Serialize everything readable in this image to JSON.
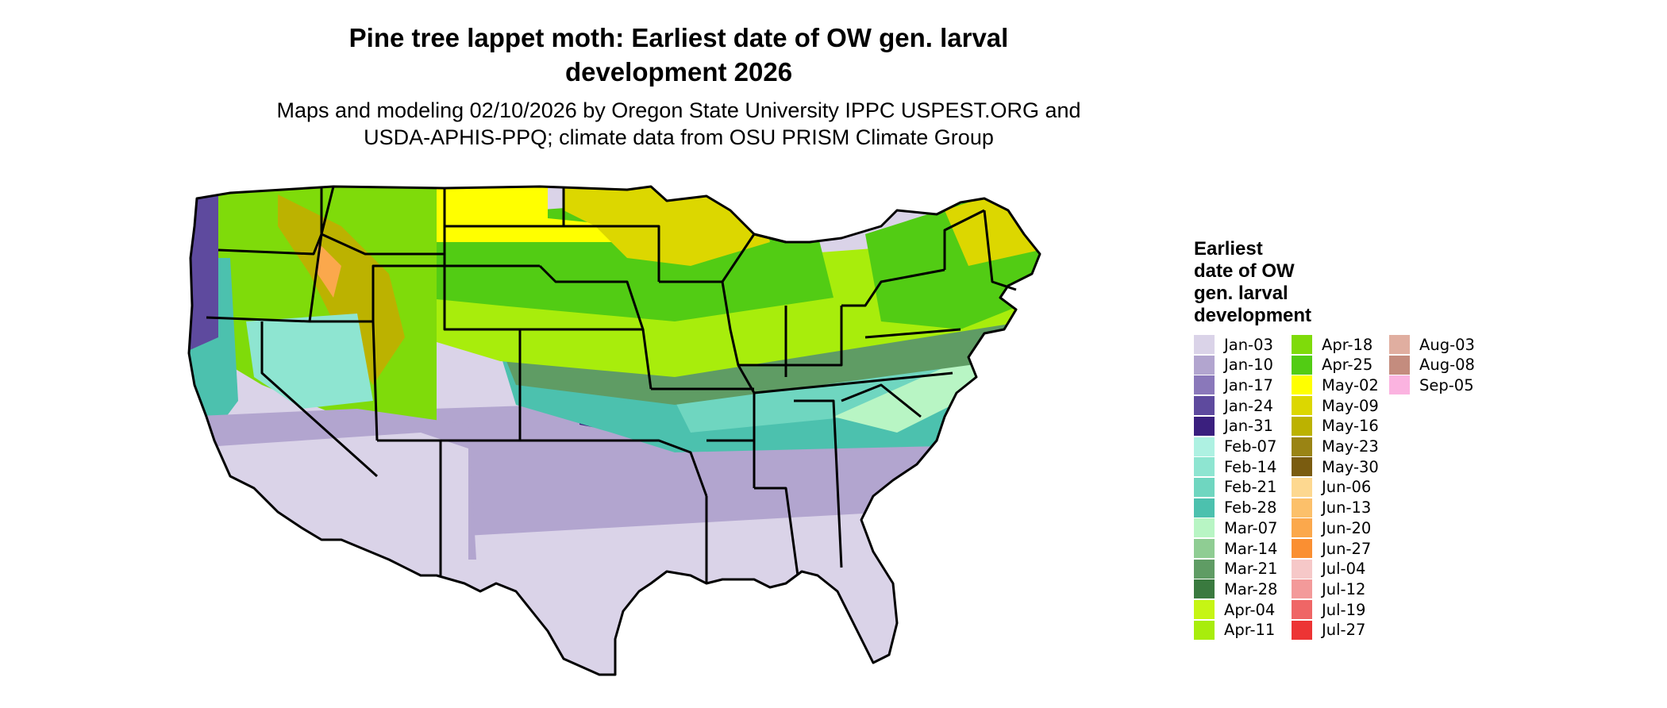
{
  "title_line1": "Pine tree lappet moth: Earliest date of OW gen. larval",
  "title_line2": "development 2026",
  "subtitle_line1": "Maps and modeling 02/10/2026 by Oregon State University IPPC USPEST.ORG and",
  "subtitle_line2": "USDA-APHIS-PPQ; climate data from OSU PRISM Climate Group",
  "legend": {
    "title_lines": [
      "Earliest",
      "date of OW",
      "gen. larval",
      "development"
    ],
    "items": [
      {
        "label": "Jan-03",
        "color": "#dad3e8"
      },
      {
        "label": "Jan-10",
        "color": "#b2a5cf"
      },
      {
        "label": "Jan-17",
        "color": "#8a78ba"
      },
      {
        "label": "Jan-24",
        "color": "#5e4a9e"
      },
      {
        "label": "Jan-31",
        "color": "#3a1f7e"
      },
      {
        "label": "Feb-07",
        "color": "#aef1e2"
      },
      {
        "label": "Feb-14",
        "color": "#8ee5d1"
      },
      {
        "label": "Feb-21",
        "color": "#6fd6c0"
      },
      {
        "label": "Feb-28",
        "color": "#4cc1ae"
      },
      {
        "label": "Mar-07",
        "color": "#b8f5c4"
      },
      {
        "label": "Mar-14",
        "color": "#8fcd93"
      },
      {
        "label": "Mar-21",
        "color": "#5f9c64"
      },
      {
        "label": "Mar-28",
        "color": "#3a7a3f"
      },
      {
        "label": "Apr-04",
        "color": "#c6f514"
      },
      {
        "label": "Apr-11",
        "color": "#a8ed0c"
      },
      {
        "label": "Apr-18",
        "color": "#7fdb0a"
      },
      {
        "label": "Apr-25",
        "color": "#52cc14"
      },
      {
        "label": "May-02",
        "color": "#ffff00"
      },
      {
        "label": "May-09",
        "color": "#dcd700"
      },
      {
        "label": "May-16",
        "color": "#bcb200"
      },
      {
        "label": "May-23",
        "color": "#9a8414"
      },
      {
        "label": "May-30",
        "color": "#7a5c10"
      },
      {
        "label": "Jun-06",
        "color": "#fdd890"
      },
      {
        "label": "Jun-13",
        "color": "#fcc06a"
      },
      {
        "label": "Jun-20",
        "color": "#fba84c"
      },
      {
        "label": "Jun-27",
        "color": "#fa8f32"
      },
      {
        "label": "Jul-04",
        "color": "#f6c8c8"
      },
      {
        "label": "Jul-12",
        "color": "#f39a9a"
      },
      {
        "label": "Jul-19",
        "color": "#ef6666"
      },
      {
        "label": "Jul-27",
        "color": "#ed3434"
      },
      {
        "label": "Aug-03",
        "color": "#e0aea0"
      },
      {
        "label": "Aug-08",
        "color": "#c48c7e"
      },
      {
        "label": "Sep-05",
        "color": "#fbb3e0"
      }
    ]
  },
  "map": {
    "region": "contiguous-united-states",
    "zones": [
      {
        "name": "southern-lowlands",
        "color": "#dad3e8"
      },
      {
        "name": "southern-transition",
        "color": "#b2a5cf"
      },
      {
        "name": "southern-plains",
        "color": "#3a1f7e"
      },
      {
        "name": "mid-south",
        "color": "#4cc1ae"
      },
      {
        "name": "ohio-valley",
        "color": "#6fd6c0"
      },
      {
        "name": "mid-atlantic",
        "color": "#b8f5c4"
      },
      {
        "name": "corn-belt-south",
        "color": "#5f9c64"
      },
      {
        "name": "corn-belt",
        "color": "#a8ed0c"
      },
      {
        "name": "great-lakes",
        "color": "#52cc14"
      },
      {
        "name": "northern-plains",
        "color": "#ffff00"
      },
      {
        "name": "north-woods",
        "color": "#dcd700"
      },
      {
        "name": "northeast",
        "color": "#52cc14"
      },
      {
        "name": "new-england-north",
        "color": "#dcd700"
      },
      {
        "name": "mountain-west",
        "color": "#7fdb0a"
      },
      {
        "name": "rocky-highlands",
        "color": "#bcb200"
      },
      {
        "name": "alpine",
        "color": "#fba84c"
      },
      {
        "name": "pacific-coast",
        "color": "#4cc1ae"
      },
      {
        "name": "pacific-northwest-coast",
        "color": "#5e4a9e"
      },
      {
        "name": "great-basin",
        "color": "#8ee5d1"
      },
      {
        "name": "desert-southwest",
        "color": "#b2a5cf"
      }
    ]
  }
}
